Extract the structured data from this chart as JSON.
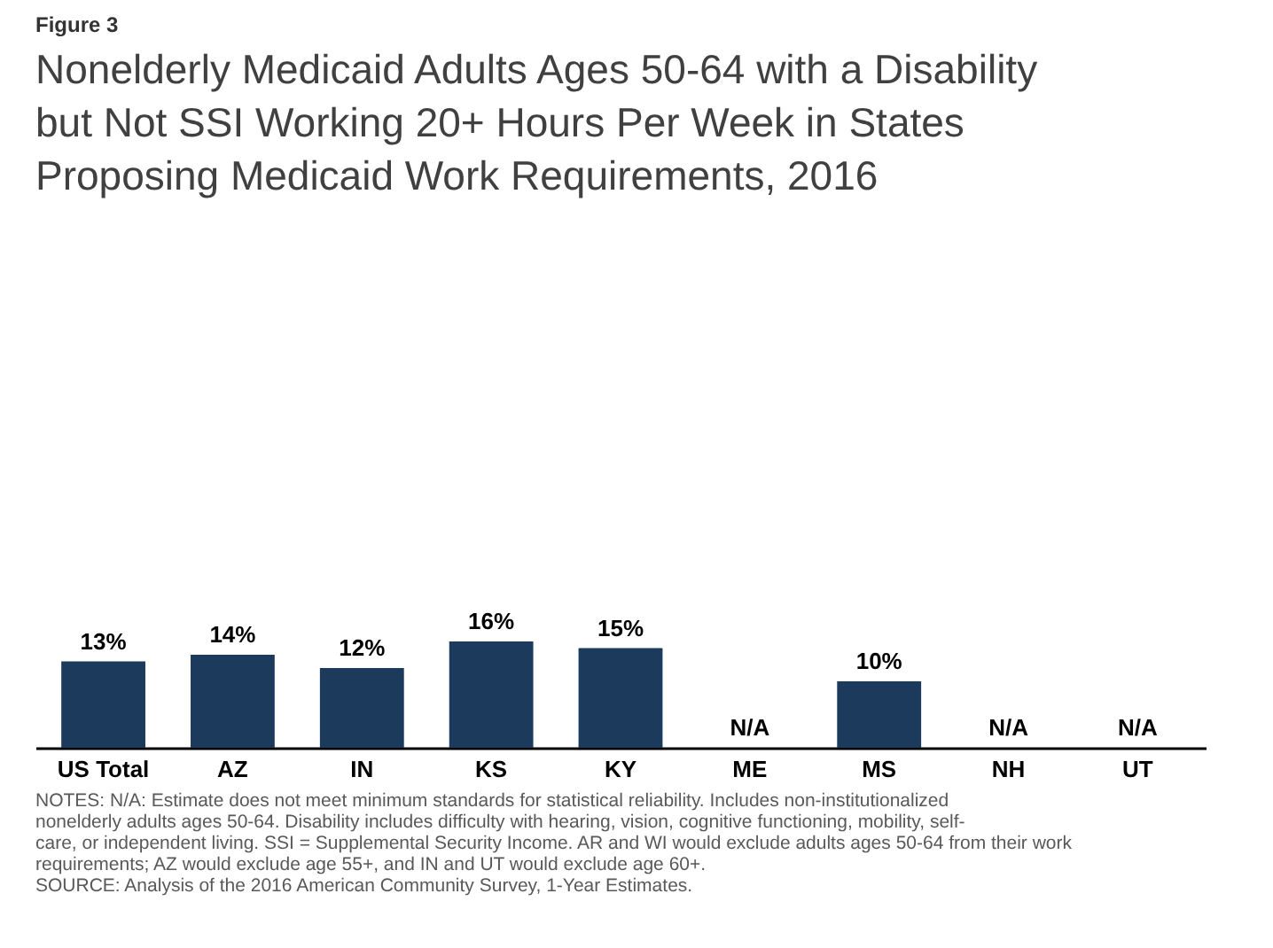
{
  "chart_data": {
    "type": "bar",
    "subtitle": "Figure 3",
    "title": "Nonelderly Medicaid Adults Ages 50-64 with a Disability but Not SSI Working 20+ Hours Per Week in States Proposing Medicaid Work Requirements, 2016",
    "categories": [
      "US Total",
      "AZ",
      "IN",
      "KS",
      "KY",
      "ME",
      "MS",
      "NH",
      "UT"
    ],
    "values": [
      13,
      14,
      12,
      16,
      15,
      null,
      10,
      null,
      null
    ],
    "value_labels": [
      "13%",
      "14%",
      "12%",
      "16%",
      "15%",
      "N/A",
      "10%",
      "N/A",
      "N/A"
    ],
    "color": "#1b3a5c",
    "annotations": [
      "NOTES: N/A: Estimate does not meet minimum standards for statistical reliability. Includes non-institutionalized nonelderly adults ages 50-64. Disability includes difficulty with hearing, vision, cognitive functioning, mobility, self-care, or independent living. SSI = Supplemental Security Income. AR and WI would exclude adults ages 50-64 from their work requirements; AZ would exclude age 55+, and IN and UT would exclude age 60+.",
      "SOURCE: Analysis of the 2016 American Community Survey, 1-Year Estimates."
    ]
  }
}
